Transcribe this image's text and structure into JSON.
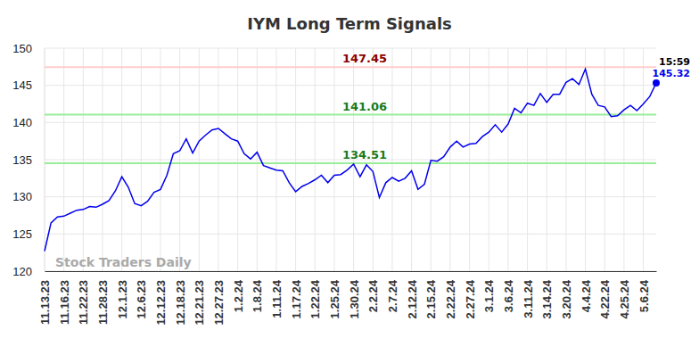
{
  "chart_data": {
    "type": "line",
    "title": "IYM Long Term Signals",
    "categories": [
      "11.13.23",
      null,
      null,
      "11.16.23",
      null,
      null,
      "11.22.23",
      null,
      null,
      "11.28.23",
      null,
      null,
      "12.1.23",
      null,
      null,
      "12.6.23",
      null,
      null,
      "12.12.23",
      null,
      null,
      "12.18.23",
      null,
      null,
      "12.21.23",
      null,
      null,
      "12.27.23",
      null,
      null,
      "1.2.24",
      null,
      null,
      "1.8.24",
      null,
      null,
      "1.11.24",
      null,
      null,
      "1.17.24",
      null,
      null,
      "1.22.24",
      null,
      null,
      "1.25.24",
      null,
      null,
      "1.30.24",
      null,
      null,
      "2.2.24",
      null,
      null,
      "2.7.24",
      null,
      null,
      "2.12.24",
      null,
      null,
      "2.15.24",
      null,
      null,
      "2.22.24",
      null,
      null,
      "2.27.24",
      null,
      null,
      "3.1.24",
      null,
      null,
      "3.6.24",
      null,
      null,
      "3.11.24",
      null,
      null,
      "3.14.24",
      null,
      null,
      "3.20.24",
      null,
      null,
      "4.4.24",
      null,
      null,
      "4.22.24",
      null,
      null,
      "4.25.24",
      null,
      null,
      "5.6.24",
      null,
      null
    ],
    "values": [
      122.7,
      126.5,
      127.3,
      127.4,
      127.8,
      128.2,
      128.3,
      128.7,
      128.6,
      129.0,
      129.5,
      130.8,
      132.7,
      131.3,
      129.1,
      128.8,
      129.4,
      130.6,
      131.0,
      132.9,
      135.8,
      136.2,
      137.8,
      135.9,
      137.5,
      138.3,
      139.0,
      139.2,
      138.5,
      137.8,
      137.5,
      135.8,
      135.1,
      136.0,
      134.2,
      133.9,
      133.6,
      133.5,
      131.9,
      130.7,
      131.4,
      131.8,
      132.3,
      132.9,
      131.9,
      132.9,
      133.0,
      133.6,
      134.4,
      132.7,
      134.3,
      133.4,
      129.9,
      131.9,
      132.6,
      132.1,
      132.5,
      133.5,
      131.0,
      131.7,
      134.9,
      134.8,
      135.4,
      136.7,
      137.5,
      136.7,
      137.1,
      137.2,
      138.1,
      138.7,
      139.7,
      138.7,
      139.8,
      141.9,
      141.3,
      142.6,
      142.3,
      143.9,
      142.7,
      143.8,
      143.8,
      145.4,
      145.9,
      145.1,
      147.2,
      143.8,
      142.3,
      142.1,
      140.8,
      140.9,
      141.7,
      142.3,
      141.6,
      142.5,
      143.5,
      145.32
    ],
    "color": "#0000ee",
    "ylim": [
      120,
      150
    ],
    "yticks": [
      120,
      125,
      130,
      135,
      140,
      145,
      150
    ],
    "grid": true,
    "hlines": [
      {
        "value": 147.45,
        "label": "147.45",
        "color": "#ffcccc",
        "label_color": "#8b0000"
      },
      {
        "value": 141.06,
        "label": "141.06",
        "color": "#99ee99",
        "label_color": "#1a7a1a"
      },
      {
        "value": 134.51,
        "label": "134.51",
        "color": "#99ee99",
        "label_color": "#1a7a1a"
      }
    ],
    "annotations": [
      {
        "text": "15:59",
        "color": "#000000"
      },
      {
        "text": "145.32",
        "color": "#0000ee"
      }
    ],
    "watermark": "Stock Traders Daily"
  }
}
